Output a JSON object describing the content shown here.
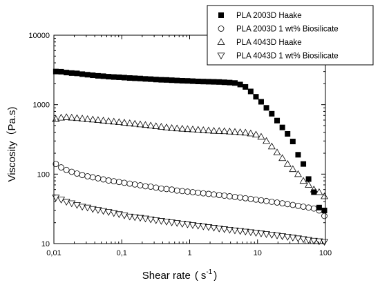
{
  "chart_data": {
    "type": "scatter",
    "xscale": "log",
    "yscale": "log",
    "xlim": [
      0.01,
      100
    ],
    "ylim": [
      10,
      10000
    ],
    "xlabel": "Shear rate",
    "xlabel_unit_open": "(",
    "xlabel_unit": "s",
    "xlabel_unit_sup": "-1",
    "xlabel_unit_close": ")",
    "ylabel": "Viscosity（Pa.s)",
    "xticks": [
      {
        "value": 0.01,
        "label": "0,01"
      },
      {
        "value": 0.1,
        "label": "0,1"
      },
      {
        "value": 1,
        "label": "1"
      },
      {
        "value": 10,
        "label": "10"
      },
      {
        "value": 100,
        "label": "100"
      }
    ],
    "yticks": [
      {
        "value": 10,
        "label": "10"
      },
      {
        "value": 100,
        "label": "100"
      },
      {
        "value": 1000,
        "label": "1000"
      },
      {
        "value": 10000,
        "label": "10000"
      }
    ],
    "legend_position": "top-right",
    "series": [
      {
        "name": "PLA 2003D Haake",
        "marker": "square-filled",
        "x": [
          0.0107,
          0.0128,
          0.0153,
          0.0183,
          0.0219,
          0.0262,
          0.0313,
          0.0374,
          0.0447,
          0.0535,
          0.0639,
          0.0764,
          0.0913,
          0.109,
          0.131,
          0.156,
          0.187,
          0.223,
          0.267,
          0.319,
          0.382,
          0.456,
          0.545,
          0.652,
          0.779,
          0.931,
          1.11,
          1.33,
          1.59,
          1.9,
          2.27,
          2.72,
          3.25,
          3.88,
          4.64,
          5.55,
          6.63,
          7.93,
          9.48,
          11.3,
          13.5,
          16.2,
          19.4,
          23.2,
          27.7,
          33.1,
          39.6,
          47.3,
          56.5,
          67.6,
          80.8,
          96.6
        ],
        "y": [
          3000,
          2980,
          2900,
          2850,
          2820,
          2750,
          2700,
          2650,
          2600,
          2570,
          2530,
          2500,
          2480,
          2450,
          2420,
          2400,
          2380,
          2350,
          2330,
          2300,
          2280,
          2270,
          2250,
          2230,
          2210,
          2200,
          2180,
          2160,
          2150,
          2140,
          2130,
          2120,
          2100,
          2080,
          2050,
          1950,
          1800,
          1550,
          1300,
          1100,
          900,
          740,
          590,
          470,
          380,
          295,
          190,
          140,
          85,
          55,
          33,
          30
        ]
      },
      {
        "name": "PLA 2003D 1 wt% Biosilicate",
        "marker": "circle-open",
        "x": [
          0.0107,
          0.0128,
          0.0153,
          0.0183,
          0.0219,
          0.0262,
          0.0313,
          0.0374,
          0.0447,
          0.0535,
          0.0639,
          0.0764,
          0.0913,
          0.109,
          0.131,
          0.156,
          0.187,
          0.223,
          0.267,
          0.319,
          0.382,
          0.456,
          0.545,
          0.652,
          0.779,
          0.931,
          1.11,
          1.33,
          1.59,
          1.9,
          2.27,
          2.72,
          3.25,
          3.88,
          4.64,
          5.55,
          6.63,
          7.93,
          9.48,
          11.3,
          13.5,
          16.2,
          19.4,
          23.2,
          27.7,
          33.1,
          39.6,
          47.3,
          56.5,
          67.6,
          80.8,
          96.6
        ],
        "y": [
          140,
          125,
          115,
          108,
          102,
          97,
          93,
          90,
          87,
          84,
          81,
          79,
          77,
          75,
          73,
          71,
          69,
          67,
          66,
          64,
          62,
          61,
          60,
          58,
          57,
          56,
          55,
          54,
          53,
          52,
          51,
          50,
          49,
          48,
          47,
          46,
          45,
          44,
          43,
          42,
          41,
          40,
          39,
          38,
          37,
          36,
          35,
          34,
          33,
          32,
          30,
          25
        ]
      },
      {
        "name": "PLA 4043D Haake",
        "marker": "triangle-up-open",
        "x": [
          0.0107,
          0.0128,
          0.0153,
          0.0183,
          0.0219,
          0.0262,
          0.0313,
          0.0374,
          0.0447,
          0.0535,
          0.0639,
          0.0764,
          0.0913,
          0.109,
          0.131,
          0.156,
          0.187,
          0.223,
          0.267,
          0.319,
          0.382,
          0.456,
          0.545,
          0.652,
          0.779,
          0.931,
          1.11,
          1.33,
          1.59,
          1.9,
          2.27,
          2.72,
          3.25,
          3.88,
          4.64,
          5.55,
          6.63,
          7.93,
          9.48,
          11.3,
          13.5,
          16.2,
          19.4,
          23.2,
          27.7,
          33.1,
          39.6,
          47.3,
          56.5,
          67.6,
          80.8,
          96.6
        ],
        "y": [
          620,
          650,
          660,
          650,
          640,
          630,
          620,
          610,
          600,
          590,
          580,
          570,
          560,
          550,
          540,
          530,
          520,
          510,
          500,
          490,
          480,
          470,
          460,
          455,
          450,
          445,
          440,
          435,
          430,
          425,
          420,
          418,
          415,
          410,
          405,
          400,
          395,
          385,
          370,
          345,
          300,
          250,
          205,
          170,
          140,
          118,
          100,
          80,
          70,
          60,
          55,
          48
        ]
      },
      {
        "name": "PLA 4043D  1 wt% Biosilicate",
        "marker": "triangle-down-open",
        "x": [
          0.0107,
          0.0128,
          0.0153,
          0.0183,
          0.0219,
          0.0262,
          0.0313,
          0.0374,
          0.0447,
          0.0535,
          0.0639,
          0.0764,
          0.0913,
          0.109,
          0.131,
          0.156,
          0.187,
          0.223,
          0.267,
          0.319,
          0.382,
          0.456,
          0.545,
          0.652,
          0.779,
          0.931,
          1.11,
          1.33,
          1.59,
          1.9,
          2.27,
          2.72,
          3.25,
          3.88,
          4.64,
          5.55,
          6.63,
          7.93,
          9.48,
          11.3,
          13.5,
          16.2,
          19.4,
          23.2,
          27.7,
          33.1,
          39.6,
          47.3,
          56.5,
          67.6,
          80.8,
          96.6
        ],
        "y": [
          46,
          43,
          40,
          38,
          36,
          34,
          33,
          31.5,
          30.5,
          29.5,
          28.5,
          27.5,
          26.5,
          25.5,
          24.5,
          24,
          23.5,
          23,
          22.3,
          21.7,
          21.2,
          20.7,
          20.2,
          19.8,
          19.3,
          18.9,
          18.5,
          18.1,
          17.7,
          17.3,
          16.9,
          16.5,
          16.1,
          15.8,
          15.5,
          15.2,
          14.9,
          14.6,
          14.3,
          14,
          13.7,
          13.4,
          13.1,
          12.8,
          12.5,
          12.2,
          11.9,
          11.6,
          11.3,
          11,
          10.8,
          10.6
        ]
      }
    ]
  }
}
